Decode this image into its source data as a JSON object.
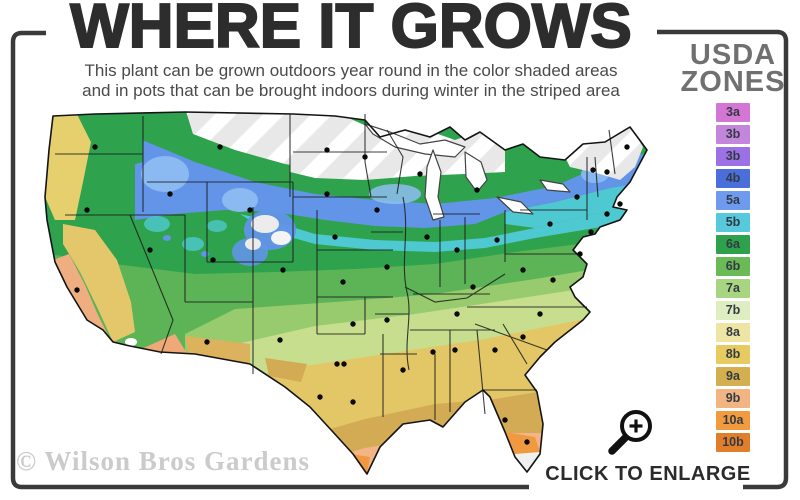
{
  "title": "WHERE IT GROWS",
  "subtitle": {
    "line1": "This plant can be grown outdoors year round in the color shaded areas",
    "line2": "and in pots that can be brought indoors during winter in the striped area"
  },
  "legend": {
    "heading_line1": "USDA",
    "heading_line2": "ZONES",
    "zones": [
      {
        "label": "3a",
        "color": "#d476d4"
      },
      {
        "label": "3b",
        "color": "#c485dc"
      },
      {
        "label": "3b",
        "color": "#9d71e6"
      },
      {
        "label": "4b",
        "color": "#4a6fdb"
      },
      {
        "label": "5a",
        "color": "#6f9bef"
      },
      {
        "label": "5b",
        "color": "#57c9dc"
      },
      {
        "label": "6a",
        "color": "#2da14b"
      },
      {
        "label": "6b",
        "color": "#6aba55"
      },
      {
        "label": "7a",
        "color": "#a8d57f"
      },
      {
        "label": "7b",
        "color": "#dfeec0"
      },
      {
        "label": "8a",
        "color": "#eee5a4"
      },
      {
        "label": "8b",
        "color": "#e7ca60"
      },
      {
        "label": "9a",
        "color": "#d4af4f"
      },
      {
        "label": "9b",
        "color": "#f2b582"
      },
      {
        "label": "10a",
        "color": "#f29a3e"
      },
      {
        "label": "10b",
        "color": "#e17e2a"
      }
    ]
  },
  "map": {
    "region": "Contiguous United States",
    "palette": {
      "striped_cold_area": "#e8e8e8",
      "stripe_highlight": "#ffffff",
      "blue_band": "#6295e8",
      "light_blue": "#8fbef2",
      "teal_band": "#4fc9d1",
      "dark_green": "#2fa24d",
      "medium_green": "#5cb457",
      "light_green": "#97cb6e",
      "yellow_green": "#c6de8d",
      "gold": "#e3c766",
      "tan": "#d3ab55",
      "peach": "#f3b586",
      "orange": "#ef9a41",
      "coast_yellow": "#e6d06e",
      "border_line": "#1b1b1b"
    }
  },
  "watermark": "© Wilson Bros Gardens",
  "enlarge": {
    "label": "CLICK TO ENLARGE",
    "icon": "magnifier-plus-icon"
  },
  "frame_color": "#3a3a3a"
}
